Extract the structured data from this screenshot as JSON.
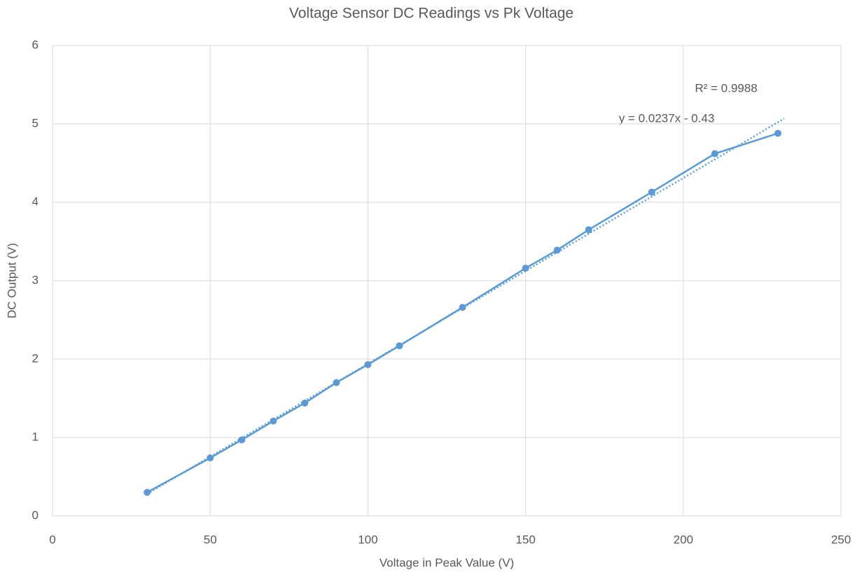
{
  "chart_data": {
    "type": "line",
    "title": "Voltage Sensor DC Readings vs Pk Voltage",
    "xlabel": "Voltage in Peak Value (V)",
    "ylabel": "DC Output (V)",
    "x": [
      30,
      50,
      60,
      70,
      80,
      90,
      100,
      110,
      130,
      150,
      160,
      170,
      190,
      210,
      230
    ],
    "series": [
      {
        "name": "DC Output",
        "color": "#5b9bd5",
        "values": [
          0.3,
          0.74,
          0.97,
          1.21,
          1.44,
          1.7,
          1.93,
          2.17,
          2.66,
          3.16,
          3.39,
          3.65,
          4.13,
          4.62,
          4.88
        ]
      }
    ],
    "trendline": {
      "slope": 0.0237,
      "intercept": -0.43,
      "xlim": [
        30,
        232
      ],
      "color": "#5b9bd5"
    },
    "annotations": [
      "R² = 0.9988",
      "y = 0.0237x - 0.43"
    ],
    "xlim": [
      0,
      250
    ],
    "xticks": [
      0,
      50,
      100,
      150,
      200,
      250
    ],
    "ylim": [
      0,
      6
    ],
    "yticks": [
      0,
      1,
      2,
      3,
      4,
      5,
      6
    ],
    "grid": true
  }
}
